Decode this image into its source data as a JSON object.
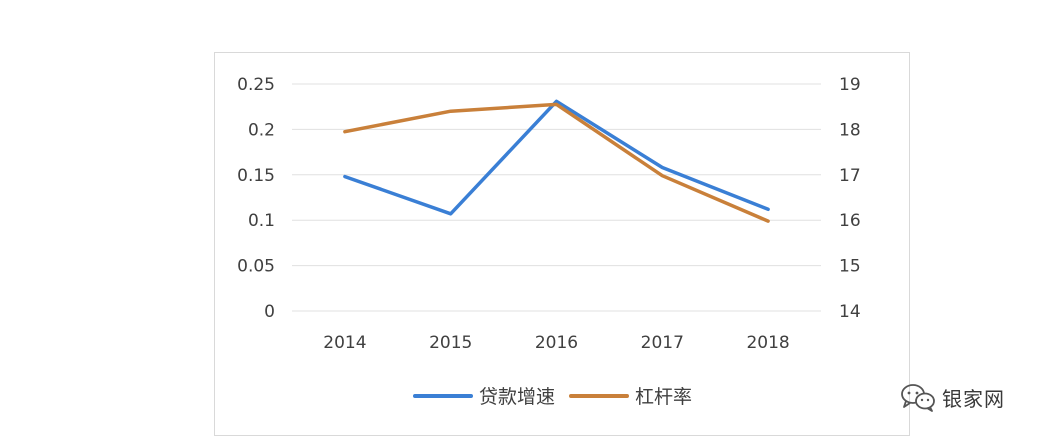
{
  "chart_data": {
    "type": "line",
    "categories": [
      "2014",
      "2015",
      "2016",
      "2017",
      "2018"
    ],
    "series": [
      {
        "name": "贷款增速",
        "axis": "left",
        "color": "#3a7fd5",
        "values": [
          0.148,
          0.107,
          0.231,
          0.158,
          0.112
        ]
      },
      {
        "name": "杠杆率",
        "axis": "right",
        "color": "#c9803a",
        "values": [
          17.95,
          18.4,
          18.55,
          16.98,
          15.98
        ]
      }
    ],
    "y_left": {
      "min": 0,
      "max": 0.25,
      "ticks": [
        "0",
        "0.05",
        "0.1",
        "0.15",
        "0.2",
        "0.25"
      ]
    },
    "y_right": {
      "min": 14,
      "max": 19,
      "ticks": [
        "14",
        "15",
        "16",
        "17",
        "18",
        "19"
      ]
    },
    "grid": true,
    "legend_position": "bottom"
  },
  "watermark": {
    "text": "银家网",
    "icon": "wechat-icon"
  }
}
